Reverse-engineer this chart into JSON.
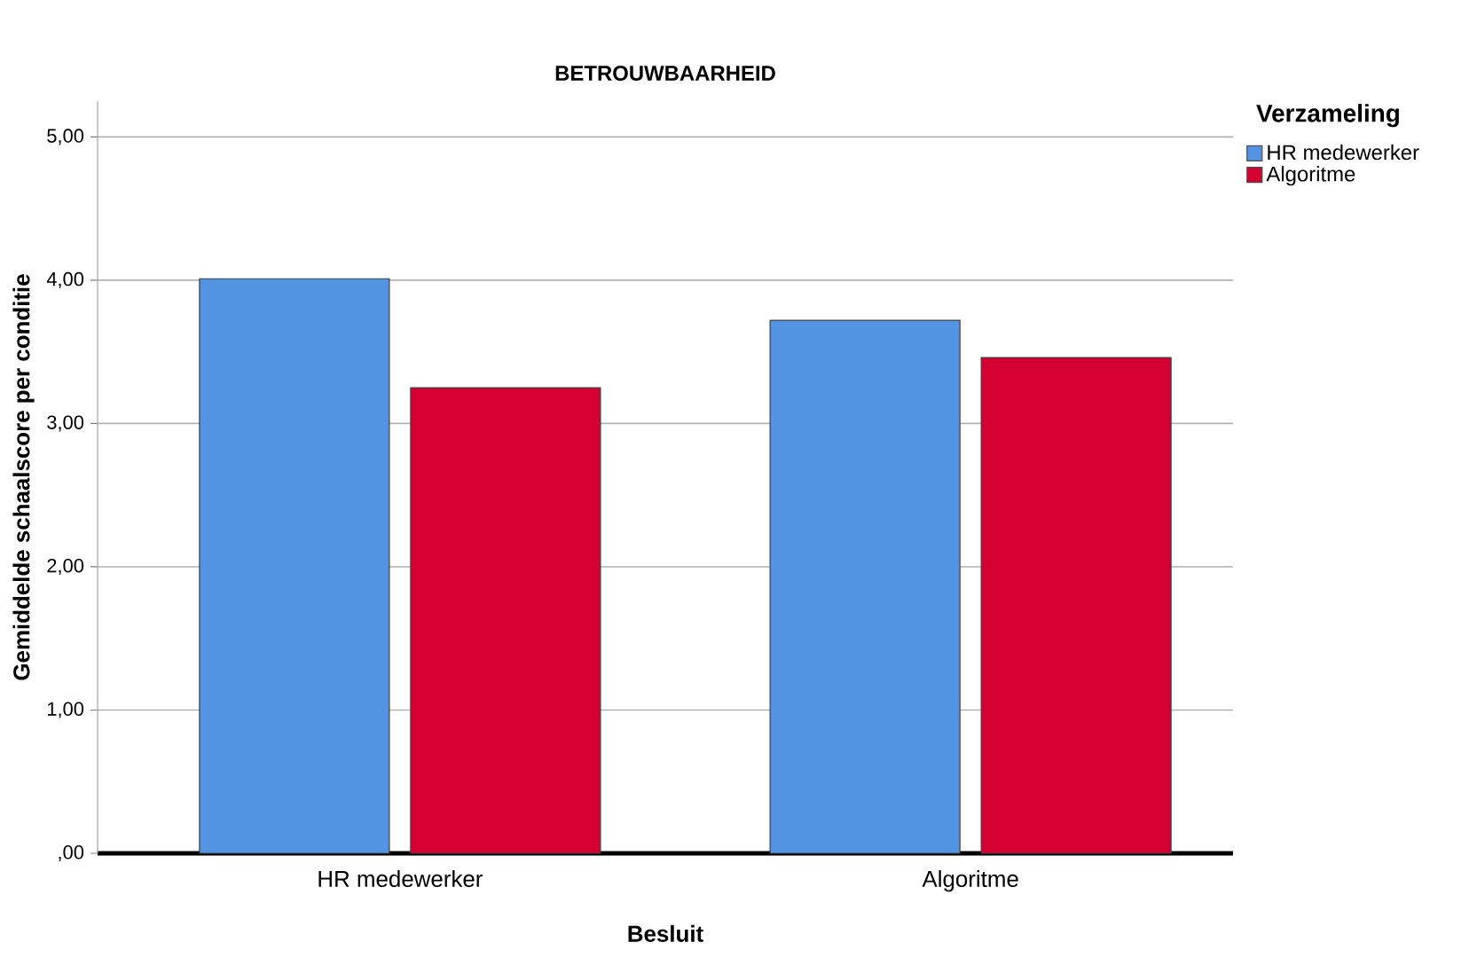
{
  "chart_data": {
    "type": "bar",
    "title": "BETROUWBAARHEID",
    "xlabel": "Besluit",
    "ylabel": "Gemiddelde schaalscore per conditie",
    "legend_title": "Verzameling",
    "categories": [
      "HR medewerker",
      "Algoritme"
    ],
    "series": [
      {
        "name": "HR medewerker",
        "color": "#5294e2",
        "values": [
          4.01,
          3.72
        ]
      },
      {
        "name": "Algoritme",
        "color": "#d50032",
        "values": [
          3.25,
          3.46
        ]
      }
    ],
    "ylim": [
      0,
      5.25
    ],
    "yticks": [
      {
        "value": 0,
        "label": ",00"
      },
      {
        "value": 1,
        "label": "1,00"
      },
      {
        "value": 2,
        "label": "2,00"
      },
      {
        "value": 3,
        "label": "3,00"
      },
      {
        "value": 4,
        "label": "4,00"
      },
      {
        "value": 5,
        "label": "5,00"
      }
    ],
    "grid": "y",
    "legend": "top right"
  }
}
